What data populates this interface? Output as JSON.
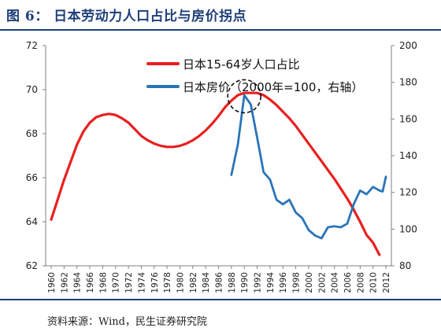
{
  "header": {
    "title": "图 6： 日本劳动力人口占比与房价拐点"
  },
  "footer": {
    "source": "资料来源：Wind，民生证券研究院"
  },
  "colors": {
    "accent": "#1f3f7a",
    "series_red": "#e8201f",
    "series_blue": "#2a74b8"
  },
  "chart_data": {
    "type": "line",
    "title": "",
    "x": {
      "range": [
        1960,
        2012
      ],
      "ticks": [
        1960,
        1962,
        1964,
        1966,
        1968,
        1970,
        1972,
        1974,
        1976,
        1978,
        1980,
        1982,
        1984,
        1986,
        1988,
        1990,
        1992,
        1994,
        1996,
        1998,
        2000,
        2002,
        2004,
        2006,
        2008,
        2010,
        2012
      ]
    },
    "y_left": {
      "range": [
        62,
        72
      ],
      "ticks": [
        62,
        64,
        66,
        68,
        70,
        72
      ]
    },
    "y_right": {
      "range": [
        80,
        200
      ],
      "ticks": [
        80,
        100,
        120,
        140,
        160,
        180,
        200
      ]
    },
    "legend": {
      "placement": "top-center"
    },
    "grid": false,
    "series": [
      {
        "name": "日本15-64岁人口占比",
        "axis": "left",
        "color": "#e8201f",
        "points": [
          [
            1960,
            64.1
          ],
          [
            1961,
            65.0
          ],
          [
            1962,
            65.9
          ],
          [
            1963,
            66.7
          ],
          [
            1964,
            67.5
          ],
          [
            1965,
            68.1
          ],
          [
            1966,
            68.5
          ],
          [
            1967,
            68.75
          ],
          [
            1968,
            68.85
          ],
          [
            1969,
            68.9
          ],
          [
            1970,
            68.85
          ],
          [
            1971,
            68.7
          ],
          [
            1972,
            68.5
          ],
          [
            1973,
            68.2
          ],
          [
            1974,
            67.9
          ],
          [
            1975,
            67.7
          ],
          [
            1976,
            67.55
          ],
          [
            1977,
            67.45
          ],
          [
            1978,
            67.4
          ],
          [
            1979,
            67.4
          ],
          [
            1980,
            67.45
          ],
          [
            1981,
            67.55
          ],
          [
            1982,
            67.7
          ],
          [
            1983,
            67.9
          ],
          [
            1984,
            68.15
          ],
          [
            1985,
            68.45
          ],
          [
            1986,
            68.8
          ],
          [
            1987,
            69.2
          ],
          [
            1988,
            69.5
          ],
          [
            1989,
            69.75
          ],
          [
            1990,
            69.85
          ],
          [
            1991,
            69.85
          ],
          [
            1992,
            69.85
          ],
          [
            1993,
            69.75
          ],
          [
            1994,
            69.55
          ],
          [
            1995,
            69.3
          ],
          [
            1996,
            69.0
          ],
          [
            1997,
            68.7
          ],
          [
            1998,
            68.35
          ],
          [
            1999,
            67.95
          ],
          [
            2000,
            67.55
          ],
          [
            2001,
            67.15
          ],
          [
            2002,
            66.75
          ],
          [
            2003,
            66.35
          ],
          [
            2004,
            65.95
          ],
          [
            2005,
            65.5
          ],
          [
            2006,
            65.05
          ],
          [
            2007,
            64.55
          ],
          [
            2008,
            64.0
          ],
          [
            2009,
            63.4
          ],
          [
            2010,
            63.05
          ],
          [
            2011,
            62.5
          ]
        ]
      },
      {
        "name": "日本房价（2000年=100，右轴）",
        "axis": "right",
        "color": "#2a74b8",
        "points": [
          [
            1988,
            129.5
          ],
          [
            1989,
            146
          ],
          [
            1990,
            173
          ],
          [
            1991,
            168
          ],
          [
            1992,
            150
          ],
          [
            1993,
            131
          ],
          [
            1994,
            127
          ],
          [
            1995,
            116
          ],
          [
            1996,
            113.5
          ],
          [
            1997,
            116
          ],
          [
            1998,
            109
          ],
          [
            1999,
            106
          ],
          [
            2000,
            99.5
          ],
          [
            2001,
            96.5
          ],
          [
            2002,
            95
          ],
          [
            2003,
            101
          ],
          [
            2004,
            101.5
          ],
          [
            2005,
            101
          ],
          [
            2006,
            103
          ],
          [
            2007,
            113.5
          ],
          [
            2008,
            121
          ],
          [
            2009,
            119
          ],
          [
            2010,
            123
          ],
          [
            2011,
            121
          ],
          [
            2011.5,
            120.5
          ],
          [
            2012,
            128.5
          ]
        ]
      }
    ],
    "annotation": {
      "type": "dashed-circle",
      "x": 1990,
      "y_left": 69.7
    }
  }
}
